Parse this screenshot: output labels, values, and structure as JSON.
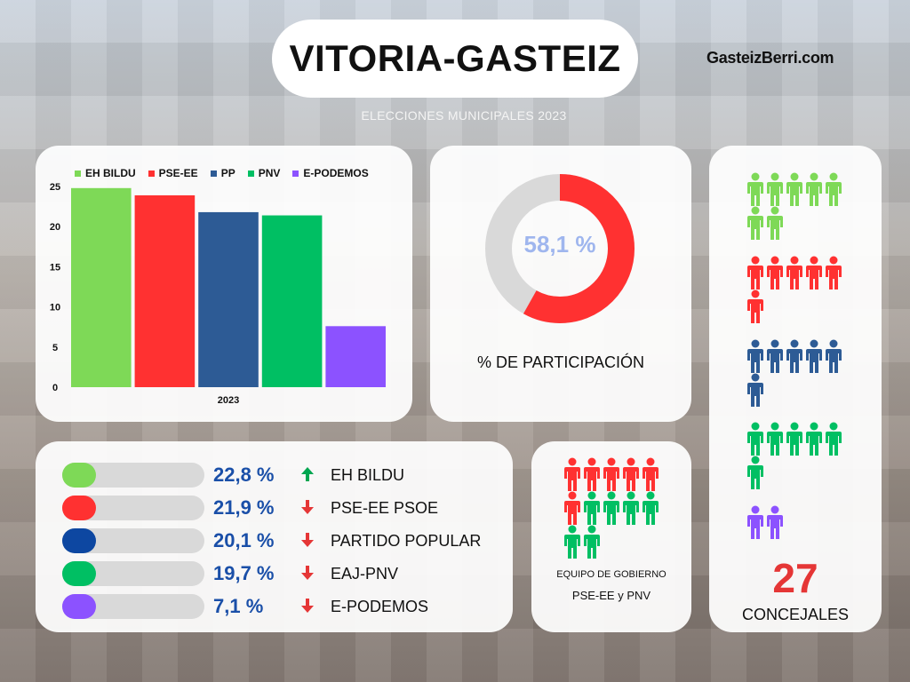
{
  "header": {
    "title": "VITORIA-GASTEIZ",
    "site": "GasteizBerri.com",
    "subtitle": "ELECCIONES MUNICIPALES 2023"
  },
  "colors": {
    "eh_bildu": "#7ed957",
    "pse_ee": "#ff3131",
    "pp": "#2d5b95",
    "pnv": "#00bf63",
    "podemos": "#8c52ff",
    "up": "#00a650",
    "down": "#e53636",
    "pct_text": "#1a4fa8"
  },
  "chart_data": {
    "type": "bar",
    "categories": [
      "2023"
    ],
    "series": [
      {
        "name": "EH BILDU",
        "values": [
          24.8
        ],
        "color": "#7ed957"
      },
      {
        "name": "PSE-EE",
        "values": [
          23.9
        ],
        "color": "#ff3131"
      },
      {
        "name": "PP",
        "values": [
          21.8
        ],
        "color": "#2d5b95"
      },
      {
        "name": "PNV",
        "values": [
          21.4
        ],
        "color": "#00bf63"
      },
      {
        "name": "E-PODEMOS",
        "values": [
          7.6
        ],
        "color": "#8c52ff"
      }
    ],
    "yticks": [
      "0",
      "5",
      "10",
      "15",
      "20",
      "25"
    ],
    "ylim": [
      0,
      25
    ],
    "legend_position": "top",
    "grid": false,
    "xlabel": "2023"
  },
  "participation": {
    "value_label": "58,1 %",
    "value": 58.1,
    "label": "% DE PARTICIPACIÓN",
    "color": "#ff3131",
    "track_color": "#d9d9d9"
  },
  "results": [
    {
      "pct": "22,8 %",
      "party": "EH BILDU",
      "trend": "up",
      "color": "#7ed957"
    },
    {
      "pct": "21,9 %",
      "party": "PSE-EE PSOE",
      "trend": "down",
      "color": "#ff3131"
    },
    {
      "pct": "20,1 %",
      "party": "PARTIDO POPULAR",
      "trend": "down",
      "color": "#0d47a1"
    },
    {
      "pct": "19,7 %",
      "party": "EAJ-PNV",
      "trend": "down",
      "color": "#00bf63"
    },
    {
      "pct": "7,1 %",
      "party": "E-PODEMOS",
      "trend": "down",
      "color": "#8c52ff"
    }
  ],
  "government": {
    "line1": "EQUIPO DE GOBIERNO",
    "line2": "PSE-EE y PNV",
    "seats": [
      {
        "party": "PSE-EE",
        "count": 6,
        "color": "#ff3131"
      },
      {
        "party": "PNV",
        "count": 6,
        "color": "#00bf63"
      }
    ]
  },
  "council": {
    "total": "27",
    "label": "CONCEJALES",
    "groups": [
      {
        "party": "EH BILDU",
        "count": 7,
        "color": "#7ed957"
      },
      {
        "party": "PSE-EE",
        "count": 6,
        "color": "#ff3131"
      },
      {
        "party": "PP",
        "count": 6,
        "color": "#2d5b95"
      },
      {
        "party": "PNV",
        "count": 6,
        "color": "#00bf63"
      },
      {
        "party": "E-PODEMOS",
        "count": 2,
        "color": "#8c52ff"
      }
    ]
  }
}
